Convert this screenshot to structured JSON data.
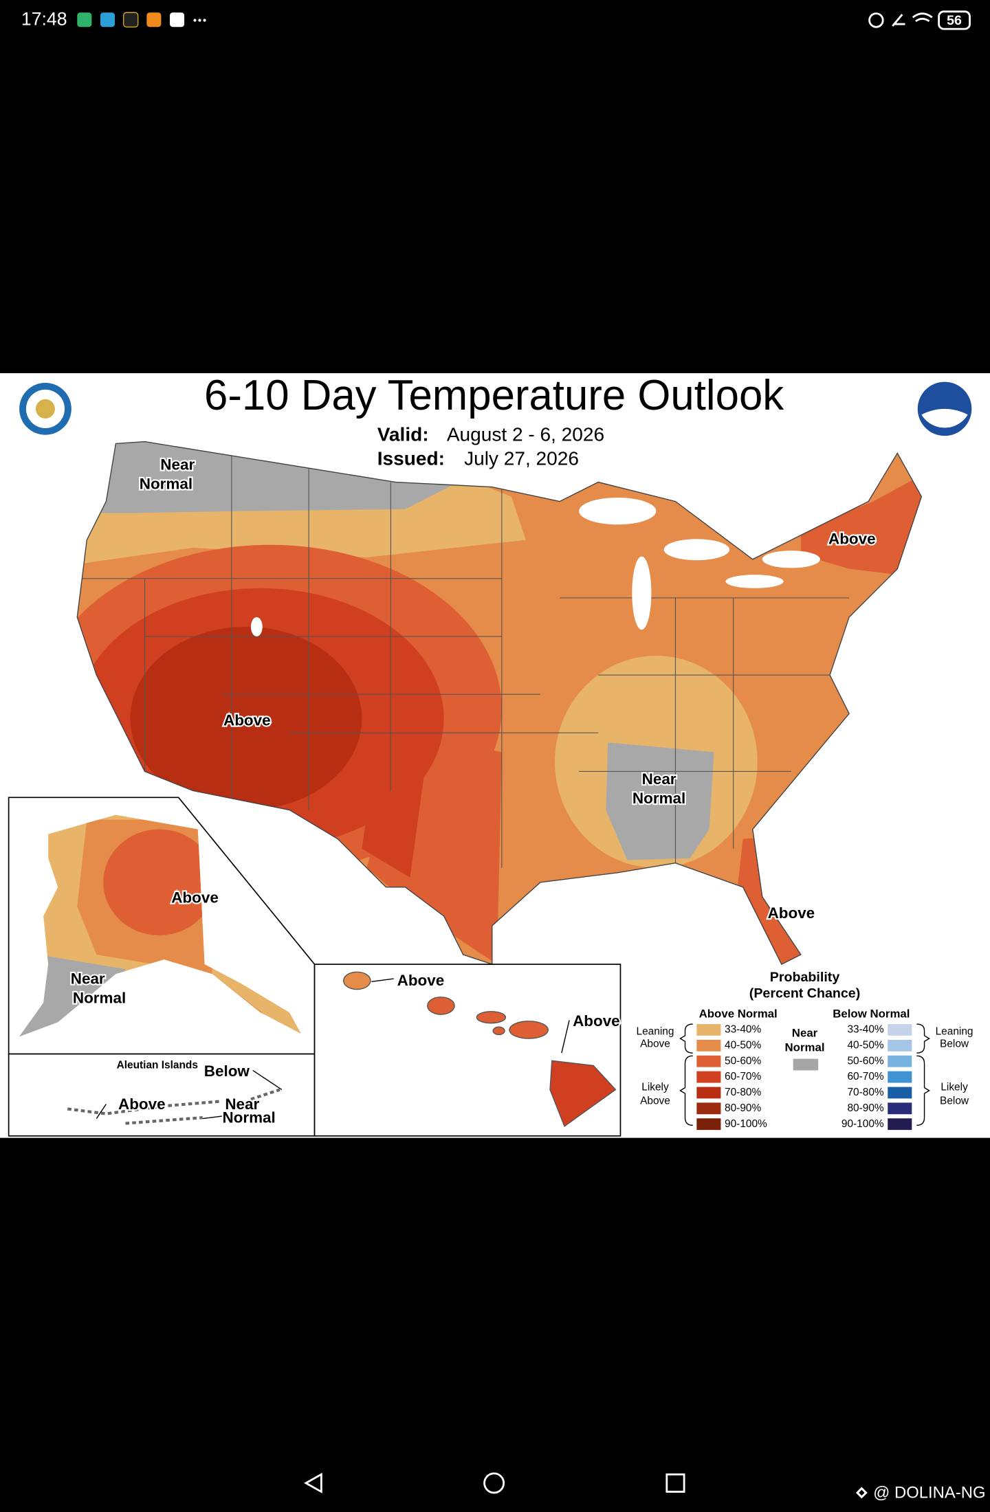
{
  "status_bar": {
    "time": "17:48",
    "battery": "56"
  },
  "map": {
    "title": "6-10 Day Temperature Outlook",
    "valid_label": "Valid:",
    "valid_value": "August 2 - 6, 2026",
    "issued_label": "Issued:",
    "issued_value": "July 27, 2026",
    "annotations": [
      {
        "lines": [
          "Near",
          "Normal"
        ]
      },
      {
        "lines": [
          "Above"
        ]
      },
      {
        "lines": [
          "Above"
        ]
      },
      {
        "lines": [
          "Near",
          "Normal"
        ]
      },
      {
        "lines": [
          "Above"
        ]
      },
      {
        "lines": [
          "Above"
        ]
      },
      {
        "lines": [
          "Near",
          "Normal"
        ]
      },
      {
        "lines": [
          "Aleutian Islands"
        ]
      },
      {
        "lines": [
          "Below"
        ]
      },
      {
        "lines": [
          "Above"
        ]
      },
      {
        "lines": [
          "Near",
          "Normal"
        ]
      },
      {
        "lines": [
          "Above"
        ]
      },
      {
        "lines": [
          "Above"
        ]
      }
    ],
    "legend": {
      "title": [
        "Probability",
        "(Percent Chance)"
      ],
      "above_header": "Above Normal",
      "below_header": "Below Normal",
      "near": {
        "lines": [
          "Near",
          "Normal"
        ],
        "color": "#a6a6a6"
      },
      "leaning_above": [
        "Leaning",
        "Above"
      ],
      "likely_above": [
        "Likely",
        "Above"
      ],
      "leaning_below": [
        "Leaning",
        "Below"
      ],
      "likely_below": [
        "Likely",
        "Below"
      ],
      "above": [
        {
          "label": "33-40%",
          "color": "#e8b46a"
        },
        {
          "label": "40-50%",
          "color": "#e58c4a"
        },
        {
          "label": "50-60%",
          "color": "#dd5f33"
        },
        {
          "label": "60-70%",
          "color": "#cf3f20"
        },
        {
          "label": "70-80%",
          "color": "#b82e12"
        },
        {
          "label": "80-90%",
          "color": "#9a2a10"
        },
        {
          "label": "90-100%",
          "color": "#7a2008"
        }
      ],
      "below": [
        {
          "label": "33-40%",
          "color": "#c5d3ea"
        },
        {
          "label": "40-50%",
          "color": "#a4c5e6"
        },
        {
          "label": "50-60%",
          "color": "#76b1e0"
        },
        {
          "label": "60-70%",
          "color": "#3f93d3"
        },
        {
          "label": "70-80%",
          "color": "#1a5fa6"
        },
        {
          "label": "80-90%",
          "color": "#2a2b7a"
        },
        {
          "label": "90-100%",
          "color": "#221c50"
        }
      ]
    }
  },
  "watermark": "@ DOLINA-NG"
}
